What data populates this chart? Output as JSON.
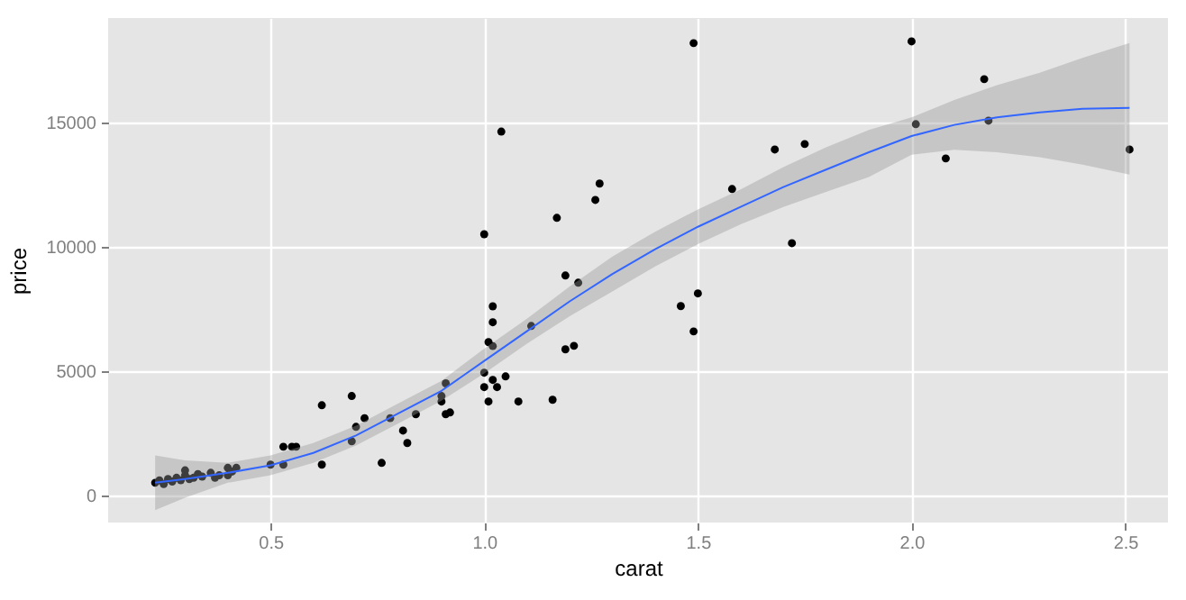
{
  "chart_data": {
    "type": "scatter",
    "xlabel": "carat",
    "ylabel": "price",
    "xlim": [
      0.12,
      2.6
    ],
    "ylim": [
      -1100,
      19200
    ],
    "xticks": [
      {
        "value": 0.5,
        "label": "0.5"
      },
      {
        "value": 1,
        "label": "1.0"
      },
      {
        "value": 1.5,
        "label": "1.5"
      },
      {
        "value": 2,
        "label": "2.0"
      },
      {
        "value": 2.5,
        "label": "2.5"
      }
    ],
    "yticks": [
      0,
      5000,
      10000,
      15000
    ],
    "grid": true,
    "marker": "circle",
    "series": [
      {
        "color": "#000000",
        "x": [
          0.23,
          0.24,
          0.25,
          0.26,
          0.27,
          0.28,
          0.29,
          0.3,
          0.3,
          0.31,
          0.32,
          0.33,
          0.34,
          0.36,
          0.37,
          0.38,
          0.4,
          0.41,
          0.42,
          0.4,
          0.5,
          0.53,
          0.62,
          0.62,
          0.53,
          0.55,
          0.56,
          0.69,
          0.7,
          0.69,
          0.72,
          0.76,
          0.78,
          0.81,
          0.82,
          0.84,
          0.9,
          0.91,
          0.92,
          0.9,
          1.0,
          1.02,
          1.02,
          1.01,
          1.02,
          1.0,
          1.0,
          1.02,
          1.03,
          1.05,
          1.01,
          1.08,
          1.16,
          1.19,
          1.21,
          1.19,
          1.22,
          1.17,
          1.26,
          1.27,
          1.11,
          0.91,
          1.04,
          1.49,
          2.0,
          2.17,
          1.68,
          1.75,
          1.58,
          2.01,
          2.18,
          2.08,
          2.51,
          1.72,
          1.46,
          1.5,
          1.49
        ],
        "values": [
          500,
          600,
          450,
          650,
          550,
          700,
          600,
          800,
          1000,
          650,
          700,
          850,
          750,
          900,
          700,
          800,
          1100,
          950,
          1100,
          800,
          1230,
          1230,
          3620,
          1230,
          1950,
          1950,
          1950,
          3990,
          2750,
          2170,
          3100,
          1300,
          3100,
          2600,
          2100,
          3260,
          3770,
          4500,
          3330,
          3990,
          10500,
          7600,
          6960,
          6160,
          6000,
          4930,
          4350,
          4640,
          4350,
          4780,
          3770,
          3770,
          3840,
          5870,
          6010,
          8840,
          8550,
          11160,
          11880,
          12540,
          6810,
          3260,
          14630,
          18190,
          18260,
          16740,
          13910,
          14130,
          12320,
          14930,
          15070,
          13550,
          13910,
          10140,
          7610,
          8120,
          6590
        ]
      },
      {
        "type": "line",
        "color": "#3366ff",
        "line_style": "solid",
        "marker": "none",
        "x": [
          0.23,
          0.3,
          0.4,
          0.5,
          0.6,
          0.7,
          0.8,
          0.9,
          1.0,
          1.1,
          1.2,
          1.3,
          1.4,
          1.5,
          1.6,
          1.7,
          1.8,
          1.9,
          2.0,
          2.1,
          2.2,
          2.3,
          2.4,
          2.51
        ],
        "values": [
          500,
          650,
          900,
          1200,
          1700,
          2400,
          3300,
          4200,
          5400,
          6600,
          7800,
          8900,
          9900,
          10800,
          11600,
          12400,
          13100,
          13800,
          14450,
          14900,
          15200,
          15400,
          15550,
          15580
        ],
        "lower": [
          -600,
          -100,
          500,
          800,
          1300,
          2000,
          2900,
          3800,
          4900,
          6100,
          7200,
          8200,
          9200,
          10100,
          10900,
          11600,
          12200,
          12800,
          13700,
          13900,
          13800,
          13600,
          13300,
          12900
        ],
        "upper": [
          1600,
          1400,
          1300,
          1600,
          2100,
          2800,
          3700,
          4600,
          5900,
          7100,
          8400,
          9600,
          10600,
          11500,
          12300,
          13200,
          14000,
          14700,
          15200,
          15900,
          16500,
          17000,
          17600,
          18190
        ]
      }
    ]
  }
}
